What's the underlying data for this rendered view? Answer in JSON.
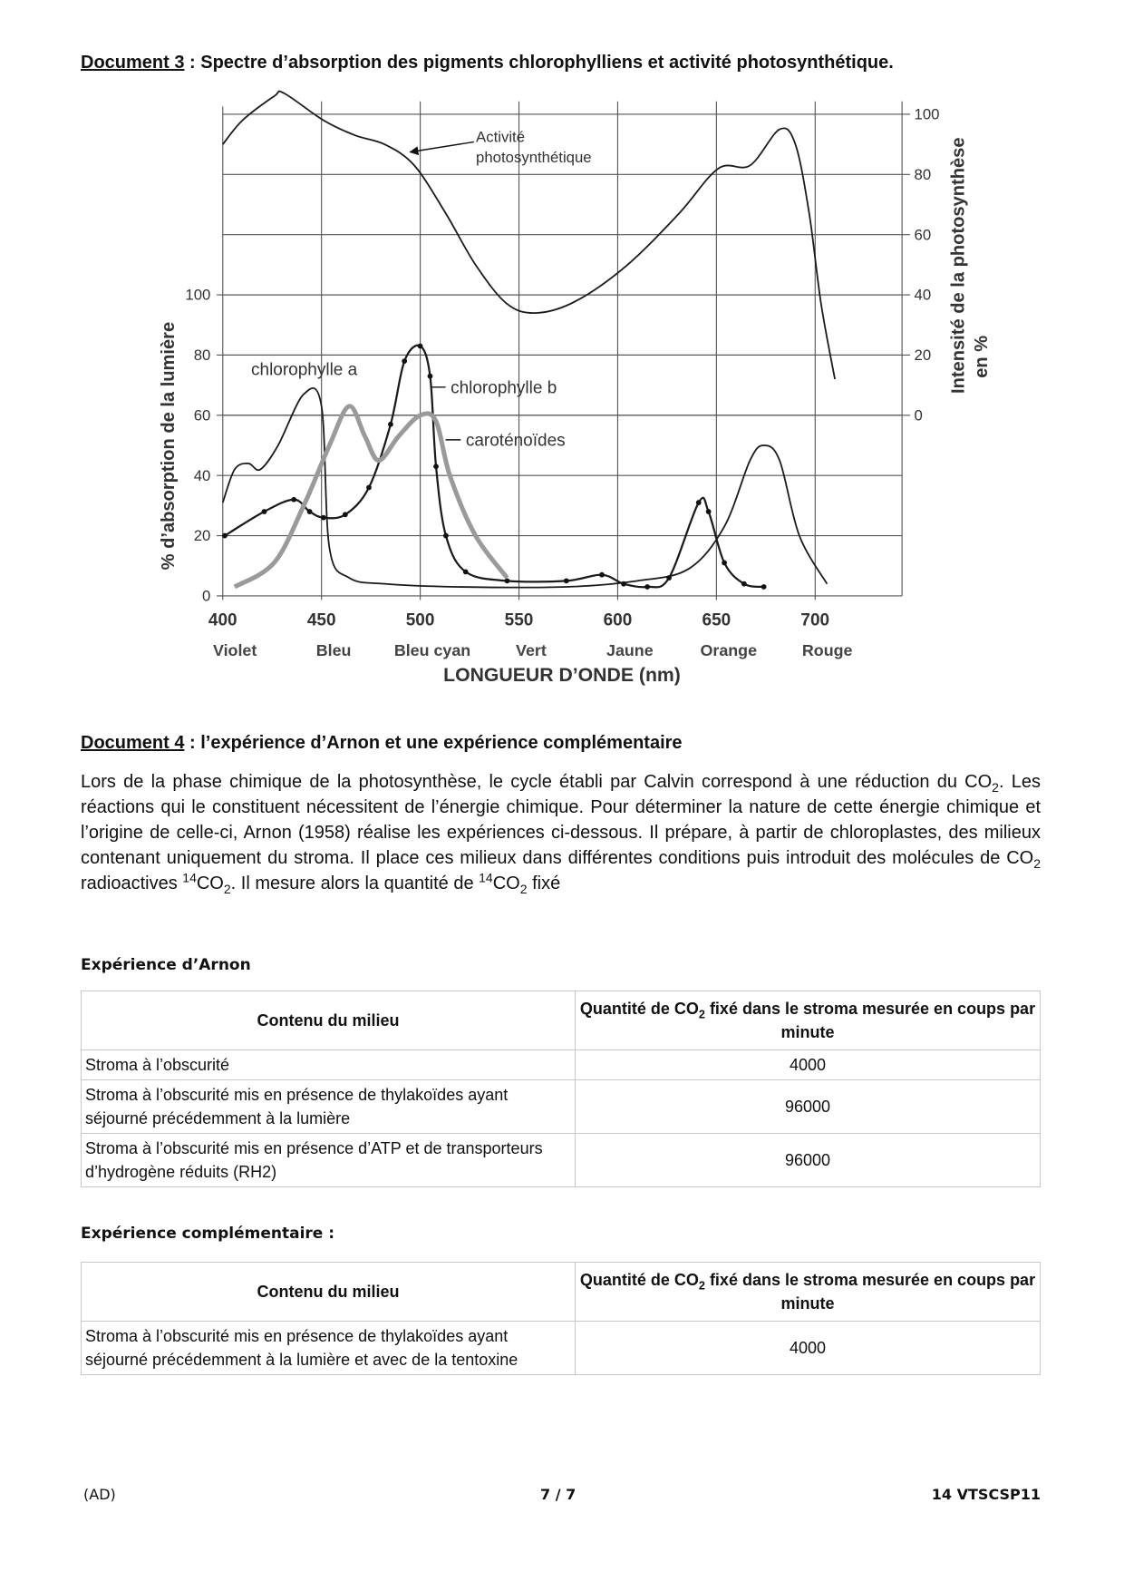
{
  "doc3": {
    "label": "Document 3",
    "title": " : Spectre d’absorption des pigments chlorophylliens et activité photosynthétique."
  },
  "chart_data": {
    "type": "line",
    "x_label": "LONGUEUR D’ONDE (nm)",
    "y_label": "% d’absorption de la lumière",
    "y2_label": [
      "Intensité de la photosynthèse",
      "en %"
    ],
    "xlim": [
      400,
      744
    ],
    "xticks": [
      400,
      450,
      500,
      550,
      600,
      650,
      700
    ],
    "x_band_labels": [
      "Violet",
      "Bleu",
      "Bleu cyan",
      "Vert",
      "Jaune",
      "Orange",
      "Rouge"
    ],
    "ylim": [
      0,
      170
    ],
    "yticks": [
      0,
      20,
      40,
      60,
      80,
      100
    ],
    "y2lim": [
      -60,
      110
    ],
    "y2ticks": [
      0,
      20,
      40,
      60,
      80,
      100
    ],
    "grid": true,
    "series": [
      {
        "name": "Activité photosynthétique",
        "color": "#1a1a1a",
        "axis": "y2",
        "x": [
          400,
          410,
          426,
          431,
          451,
          467,
          482,
          497,
          513,
          528,
          544,
          559,
          579,
          605,
          631,
          651,
          667,
          682,
          690,
          697,
          703,
          710
        ],
        "values": [
          90,
          98,
          106,
          107,
          98,
          93,
          90,
          83,
          67,
          50,
          37,
          34,
          38,
          50,
          67,
          82,
          83,
          95,
          90,
          67,
          37,
          12
        ]
      },
      {
        "name": "chlorophylle a",
        "color": "#1a1a1a",
        "x": [
          400,
          406,
          413,
          419,
          428,
          441,
          450,
          454,
          464,
          482,
          518,
          574,
          610,
          636,
          654,
          667,
          674,
          682,
          692,
          706
        ],
        "values": [
          31,
          42,
          44,
          42,
          50,
          67,
          63,
          16,
          6,
          4,
          3,
          3,
          5,
          9,
          23,
          45,
          50,
          45,
          20,
          4
        ]
      },
      {
        "name": "chlorophylle b",
        "color": "#1a1a1a",
        "x": [
          401,
          421,
          436,
          444,
          451,
          462,
          474,
          485,
          492,
          500,
          505,
          508,
          513,
          523,
          544,
          574,
          592,
          603,
          615,
          626,
          641,
          646,
          654,
          664,
          674
        ],
        "values": [
          20,
          28,
          32,
          28,
          26,
          27,
          36,
          57,
          78,
          83,
          73,
          43,
          20,
          8,
          5,
          5,
          7,
          4,
          3,
          6,
          31,
          28,
          11,
          4,
          3
        ]
      },
      {
        "name": "caroténoïdes",
        "color": "#9a9a9a",
        "x": [
          406,
          426,
          441,
          454,
          464,
          472,
          479,
          489,
          500,
          508,
          515,
          528,
          544
        ],
        "values": [
          3,
          11,
          30,
          50,
          63,
          53,
          45,
          53,
          60,
          58,
          40,
          20,
          6
        ]
      }
    ]
  },
  "doc4": {
    "label": "Document 4",
    "title": " : l’expérience d’Arnon et une expérience complémentaire",
    "text": [
      "Lors de la phase chimique de la photosynthèse, le cycle établi par Calvin correspond à une réduction du CO",
      "2",
      ". Les réactions qui le constituent nécessitent de l’énergie chimique. Pour déterminer la nature de cette énergie chimique et l’origine de celle-ci, Arnon (1958) réalise les expériences ci-dessous. Il prépare, à partir de chloroplastes, des milieux contenant uniquement du stroma. Il place ces milieux dans différentes conditions puis introduit des molécules de CO",
      "2",
      " radioactives ",
      "14",
      "CO",
      "2",
      ". Il mesure alors la quantité de ",
      "14",
      "CO",
      "2",
      " fixé"
    ]
  },
  "table1": {
    "caption": "Expérience d’Arnon",
    "header": [
      "Contenu du milieu",
      [
        "Quantité de CO",
        "2",
        " fixé dans le stroma mesurée en coups par minute"
      ]
    ],
    "rows": [
      [
        "Stroma à l’obscurité",
        4000
      ],
      [
        "Stroma à l’obscurité mis en présence de thylakoïdes ayant séjourné précédemment à la lumière",
        96000
      ],
      [
        "Stroma à l’obscurité mis en présence d’ATP et de transporteurs d’hydrogène réduits (RH2)",
        96000
      ]
    ]
  },
  "table2": {
    "caption": "Expérience complémentaire :",
    "header": [
      "Contenu du milieu",
      [
        "Quantité de CO",
        "2",
        " fixé dans le stroma mesurée en coups par minute"
      ]
    ],
    "rows": [
      [
        "Stroma à l’obscurité mis en présence de thylakoïdes ayant séjourné précédemment à la lumière et avec de la tentoxine",
        4000
      ]
    ]
  },
  "footer": {
    "left": "(AD)",
    "center": "7 / 7",
    "right": "14 VTSCSP11"
  }
}
